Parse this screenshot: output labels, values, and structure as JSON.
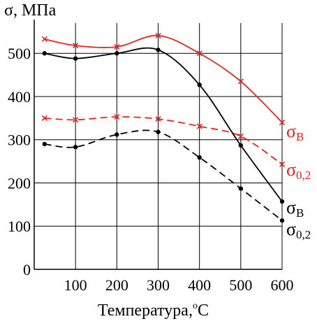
{
  "chart_data": {
    "type": "line",
    "ylabel": "σ, МПа",
    "xlabel": "Температура,°С",
    "xlabel_parts": {
      "main": "Температура,",
      "sup": "o",
      "end": "С"
    },
    "xlim": [
      0,
      600
    ],
    "ylim": [
      0,
      570
    ],
    "x_ticks": [
      100,
      200,
      300,
      400,
      500,
      600
    ],
    "y_ticks": [
      0,
      100,
      200,
      300,
      400,
      500
    ],
    "grid": true,
    "colors": {
      "red": "#e8241c",
      "black": "#000000"
    },
    "series": [
      {
        "label_main": "σ",
        "label_sub": "В",
        "color": "#e8241c",
        "dash": false,
        "marker": "x",
        "x": [
          25,
          100,
          200,
          300,
          400,
          500,
          600
        ],
        "y": [
          533,
          518,
          515,
          541,
          500,
          435,
          340
        ]
      },
      {
        "label_main": "σ",
        "label_sub": "0,2",
        "color": "#e8241c",
        "dash": true,
        "marker": "x",
        "x": [
          25,
          100,
          200,
          300,
          400,
          500,
          600
        ],
        "y": [
          350,
          346,
          353,
          348,
          331,
          308,
          243
        ]
      },
      {
        "label_main": "σ",
        "label_sub": "В",
        "color": "#000000",
        "dash": false,
        "marker": "dot",
        "x": [
          25,
          100,
          200,
          300,
          400,
          500,
          600
        ],
        "y": [
          500,
          488,
          500,
          508,
          427,
          287,
          157
        ]
      },
      {
        "label_main": "σ",
        "label_sub": "0,2",
        "color": "#000000",
        "dash": true,
        "marker": "dot",
        "x": [
          25,
          100,
          200,
          300,
          400,
          500,
          600
        ],
        "y": [
          290,
          283,
          312,
          318,
          259,
          187,
          113
        ]
      }
    ]
  }
}
